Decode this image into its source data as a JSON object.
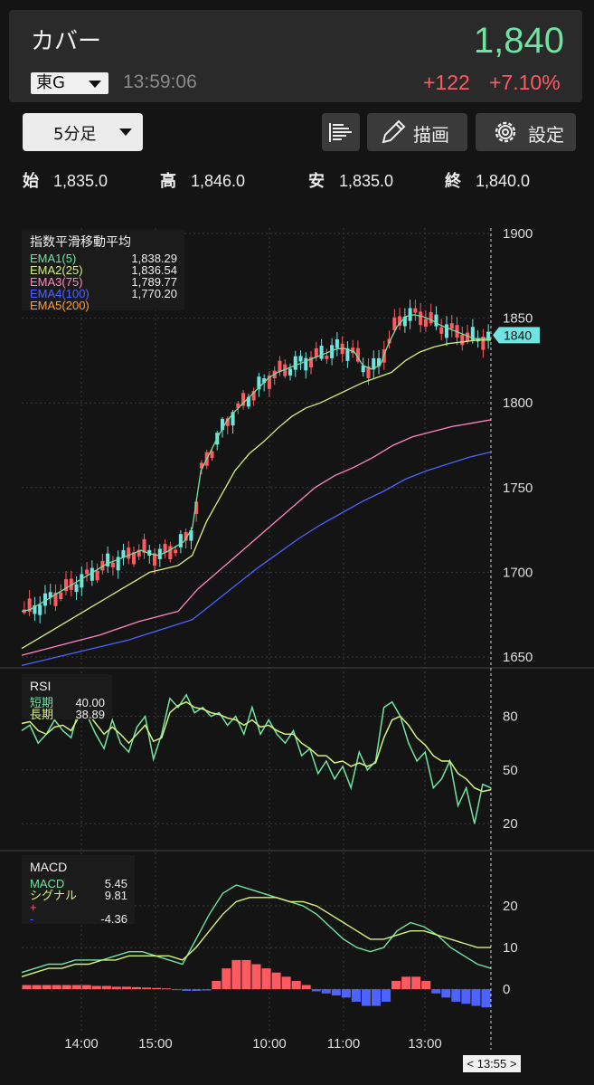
{
  "header": {
    "name": "カバー",
    "price": "1,840",
    "market": "東G",
    "time": "13:59:06",
    "change": "+122",
    "change_pct": "+7.10%"
  },
  "toolbar": {
    "interval": "5分足",
    "draw_label": "描画",
    "settings_label": "設定"
  },
  "ohlc": {
    "open_label": "始",
    "open": "1,835.0",
    "high_label": "高",
    "high": "1,846.0",
    "low_label": "安",
    "low": "1,835.0",
    "close_label": "終",
    "close": "1,840.0"
  },
  "ema_legend": {
    "title": "指数平滑移動平均",
    "items": [
      {
        "label": "EMA1(5)",
        "value": "1,838.29",
        "color": "#6fe4a2"
      },
      {
        "label": "EMA2(25)",
        "value": "1,836.54",
        "color": "#d6f27a"
      },
      {
        "label": "EMA3(75)",
        "value": "1,789.77",
        "color": "#ff86c0"
      },
      {
        "label": "EMA4(100)",
        "value": "1,770.20",
        "color": "#4d62ff"
      },
      {
        "label": "EMA5(200)",
        "value": "",
        "color": "#ff9a3c"
      }
    ]
  },
  "rsi_legend": {
    "title": "RSI",
    "items": [
      {
        "label": "短期",
        "value": "40.00",
        "color": "#6fe4a2"
      },
      {
        "label": "長期",
        "value": "38.89",
        "color": "#d6f27a"
      }
    ]
  },
  "macd_legend": {
    "title": "MACD",
    "items": [
      {
        "label": "MACD",
        "value": "5.45",
        "color": "#6fe4a2"
      },
      {
        "label": "シグナル",
        "value": "9.81",
        "color": "#d6f27a"
      },
      {
        "label": "+",
        "value": "",
        "color": "#ff5a60"
      },
      {
        "label": "-",
        "value": "-4.36",
        "color": "#4d62ff"
      }
    ]
  },
  "price_axis": {
    "ticks": [
      "1900",
      "1850",
      "1800",
      "1750",
      "1700",
      "1650"
    ],
    "current_label": "1840"
  },
  "rsi_axis": {
    "ticks": [
      "80",
      "50",
      "20"
    ]
  },
  "macd_axis": {
    "ticks": [
      "20",
      "10",
      "0"
    ]
  },
  "time_axis": {
    "ticks": [
      "14:00",
      "15:00",
      "10:00",
      "11:00",
      "13:00"
    ],
    "cursor": "< 13:55 >"
  },
  "colors": {
    "up": "#ff5a60",
    "down": "#6fe4e0",
    "background": "#141414",
    "grid": "#3a3a3a"
  },
  "chart_data": {
    "type": "candlestick",
    "candle_count": 90,
    "price_ylim": [
      1650,
      1900
    ],
    "series": [
      {
        "name": "EMA1(5)",
        "values": [
          1677,
          1678,
          1681,
          1684,
          1687,
          1690,
          1693,
          1696,
          1699,
          1702,
          1705,
          1707,
          1709,
          1711,
          1713,
          1711,
          1710,
          1712,
          1715,
          1718,
          1726,
          1760,
          1770,
          1780,
          1789,
          1795,
          1800,
          1805,
          1810,
          1815,
          1818,
          1820,
          1822,
          1824,
          1826,
          1828,
          1830,
          1832,
          1832,
          1830,
          1822,
          1820,
          1822,
          1835,
          1845,
          1851,
          1852,
          1851,
          1849,
          1846,
          1844,
          1842,
          1840,
          1838,
          1838,
          1838
        ]
      },
      {
        "name": "EMA2(25)",
        "values": [
          1655,
          1660,
          1665,
          1670,
          1675,
          1680,
          1685,
          1690,
          1695,
          1700,
          1702,
          1704,
          1710,
          1730,
          1745,
          1760,
          1770,
          1777,
          1785,
          1792,
          1797,
          1800,
          1804,
          1808,
          1812,
          1815,
          1818,
          1825,
          1830,
          1833,
          1835,
          1836,
          1837,
          1837
        ]
      },
      {
        "name": "EMA3(75)",
        "values": [
          1651,
          1654,
          1657,
          1660,
          1663,
          1667,
          1671,
          1674,
          1677,
          1690,
          1700,
          1710,
          1720,
          1730,
          1740,
          1750,
          1757,
          1762,
          1768,
          1775,
          1780,
          1783,
          1786,
          1788,
          1790
        ]
      },
      {
        "name": "EMA4(100)",
        "values": [
          1645,
          1648,
          1651,
          1654,
          1657,
          1660,
          1664,
          1668,
          1672,
          1682,
          1692,
          1702,
          1711,
          1720,
          1728,
          1735,
          1742,
          1748,
          1755,
          1760,
          1764,
          1768,
          1771
        ]
      }
    ],
    "rsi": {
      "ylim": [
        10,
        100
      ],
      "short": [
        72,
        75,
        65,
        70,
        78,
        72,
        68,
        85,
        80,
        70,
        62,
        78,
        65,
        60,
        74,
        80,
        56,
        70,
        90,
        85,
        92,
        82,
        85,
        80,
        82,
        75,
        80,
        70,
        85,
        70,
        78,
        70,
        65,
        72,
        58,
        62,
        48,
        55,
        45,
        52,
        40,
        60,
        50,
        55,
        85,
        88,
        80,
        65,
        55,
        60,
        40,
        45,
        55,
        30,
        40,
        20,
        42,
        40
      ],
      "long": [
        76,
        77,
        72,
        70,
        74,
        75,
        72,
        80,
        82,
        76,
        70,
        74,
        70,
        65,
        70,
        75,
        66,
        68,
        82,
        86,
        88,
        85,
        84,
        82,
        81,
        79,
        78,
        75,
        78,
        74,
        75,
        72,
        70,
        70,
        65,
        62,
        58,
        58,
        54,
        55,
        52,
        54,
        52,
        54,
        68,
        78,
        80,
        75,
        68,
        64,
        58,
        55,
        55,
        48,
        45,
        40,
        38,
        39
      ]
    },
    "macd": {
      "ylim": [
        -8,
        30
      ],
      "macd": [
        4,
        5,
        6,
        6,
        7,
        7,
        7,
        8,
        9,
        9,
        8,
        7,
        6,
        12,
        18,
        23,
        25,
        24,
        23,
        22,
        21,
        20,
        18,
        15,
        12,
        10,
        9,
        10,
        14,
        16,
        15,
        13,
        10,
        8,
        6,
        5
      ],
      "signal": [
        3,
        4,
        5,
        5,
        6,
        6,
        7,
        7,
        8,
        8,
        8,
        8,
        7,
        10,
        14,
        18,
        21,
        22,
        22,
        22,
        21,
        21,
        20,
        18,
        16,
        14,
        12,
        12,
        13,
        14,
        14,
        13,
        12,
        11,
        10,
        10
      ],
      "histogram": [
        1,
        1,
        1,
        1,
        1,
        1,
        1,
        0.8,
        0.8,
        0.6,
        0.6,
        0.5,
        0.4,
        0.3,
        0.2,
        -0.2,
        -0.4,
        -0.4,
        -0.3,
        2,
        5,
        7,
        7,
        6,
        5,
        4,
        3,
        2,
        1,
        -0.5,
        -1,
        -1.5,
        -2,
        -3,
        -4,
        -4,
        -3,
        2,
        3,
        3,
        2,
        -1,
        -2,
        -3,
        -3.5,
        -4,
        -4.36
      ]
    }
  }
}
